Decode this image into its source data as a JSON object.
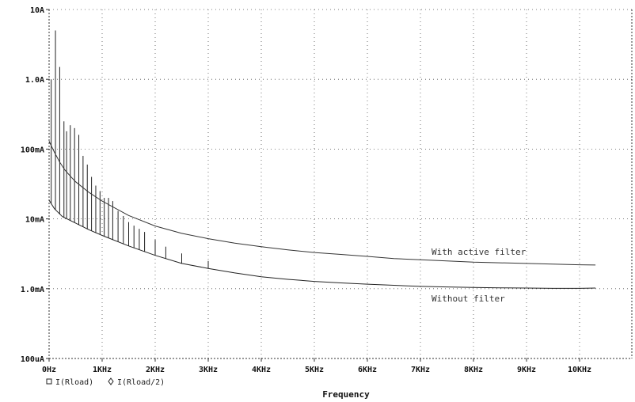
{
  "chart_data": {
    "type": "line",
    "xlabel": "Frequency",
    "x_ticks": [
      "0Hz",
      "1KHz",
      "2KHz",
      "3KHz",
      "4KHz",
      "5KHz",
      "6KHz",
      "7KHz",
      "8KHz",
      "9KHz",
      "10KHz"
    ],
    "y_ticks": [
      "100uA",
      "1.0mA",
      "10mA",
      "100mA",
      "1.0A",
      "10A"
    ],
    "y_scale": "log",
    "ylim_A": [
      0.0001,
      10
    ],
    "xlim_Hz": [
      0,
      10800
    ],
    "grid": true,
    "legend": {
      "position": "bottom-left",
      "entries": [
        {
          "marker": "square",
          "label": "I(Rload)"
        },
        {
          "marker": "diamond",
          "label": "I(Rload/2)"
        }
      ]
    },
    "annotations": [
      {
        "text": "With active filter"
      },
      {
        "text": "Without filter"
      }
    ],
    "series": [
      {
        "name": "I(Rload)",
        "color": "#222222",
        "points": [
          [
            0,
            0.0185
          ],
          [
            100,
            0.014
          ],
          [
            250,
            0.0108
          ],
          [
            500,
            0.0087
          ],
          [
            750,
            0.007
          ],
          [
            1000,
            0.0058
          ],
          [
            1500,
            0.0041
          ],
          [
            2000,
            0.003
          ],
          [
            2500,
            0.0023
          ],
          [
            3000,
            0.00195
          ],
          [
            3500,
            0.00168
          ],
          [
            4000,
            0.00148
          ],
          [
            4500,
            0.00136
          ],
          [
            5000,
            0.00127
          ],
          [
            5500,
            0.00121
          ],
          [
            6000,
            0.00116
          ],
          [
            6500,
            0.00112
          ],
          [
            7000,
            0.00108
          ],
          [
            7500,
            0.00106
          ],
          [
            8000,
            0.00104
          ],
          [
            8500,
            0.00103
          ],
          [
            9000,
            0.00102
          ],
          [
            9500,
            0.00101
          ],
          [
            10000,
            0.00101
          ],
          [
            10300,
            0.00102
          ]
        ],
        "spikes": [
          [
            40,
            1.0
          ],
          [
            120,
            5.0
          ],
          [
            200,
            1.5
          ],
          [
            280,
            0.25
          ],
          [
            330,
            0.18
          ],
          [
            400,
            0.22
          ],
          [
            480,
            0.2
          ],
          [
            560,
            0.16
          ],
          [
            640,
            0.08
          ],
          [
            720,
            0.06
          ],
          [
            800,
            0.04
          ],
          [
            880,
            0.03
          ],
          [
            960,
            0.025
          ],
          [
            1040,
            0.02
          ],
          [
            1120,
            0.02
          ],
          [
            1200,
            0.018
          ],
          [
            1300,
            0.013
          ],
          [
            1400,
            0.011
          ],
          [
            1500,
            0.009
          ],
          [
            1600,
            0.008
          ],
          [
            1700,
            0.0072
          ],
          [
            1800,
            0.0065
          ],
          [
            2000,
            0.005
          ],
          [
            2200,
            0.004
          ],
          [
            2500,
            0.0032
          ],
          [
            3000,
            0.0025
          ]
        ]
      },
      {
        "name": "I(Rload/2)",
        "color": "#333333",
        "points": [
          [
            0,
            0.13
          ],
          [
            100,
            0.09
          ],
          [
            200,
            0.065
          ],
          [
            300,
            0.05
          ],
          [
            400,
            0.041
          ],
          [
            500,
            0.034
          ],
          [
            750,
            0.024
          ],
          [
            1000,
            0.018
          ],
          [
            1500,
            0.0112
          ],
          [
            2000,
            0.0079
          ],
          [
            2500,
            0.0062
          ],
          [
            3000,
            0.0052
          ],
          [
            3500,
            0.0045
          ],
          [
            4000,
            0.004
          ],
          [
            4500,
            0.0036
          ],
          [
            5000,
            0.0033
          ],
          [
            5500,
            0.0031
          ],
          [
            6000,
            0.0029
          ],
          [
            6500,
            0.0027
          ],
          [
            7000,
            0.0026
          ],
          [
            7500,
            0.0025
          ],
          [
            8000,
            0.0024
          ],
          [
            8500,
            0.00235
          ],
          [
            9000,
            0.0023
          ],
          [
            9500,
            0.00225
          ],
          [
            10000,
            0.0022
          ],
          [
            10300,
            0.00218
          ]
        ]
      }
    ]
  }
}
